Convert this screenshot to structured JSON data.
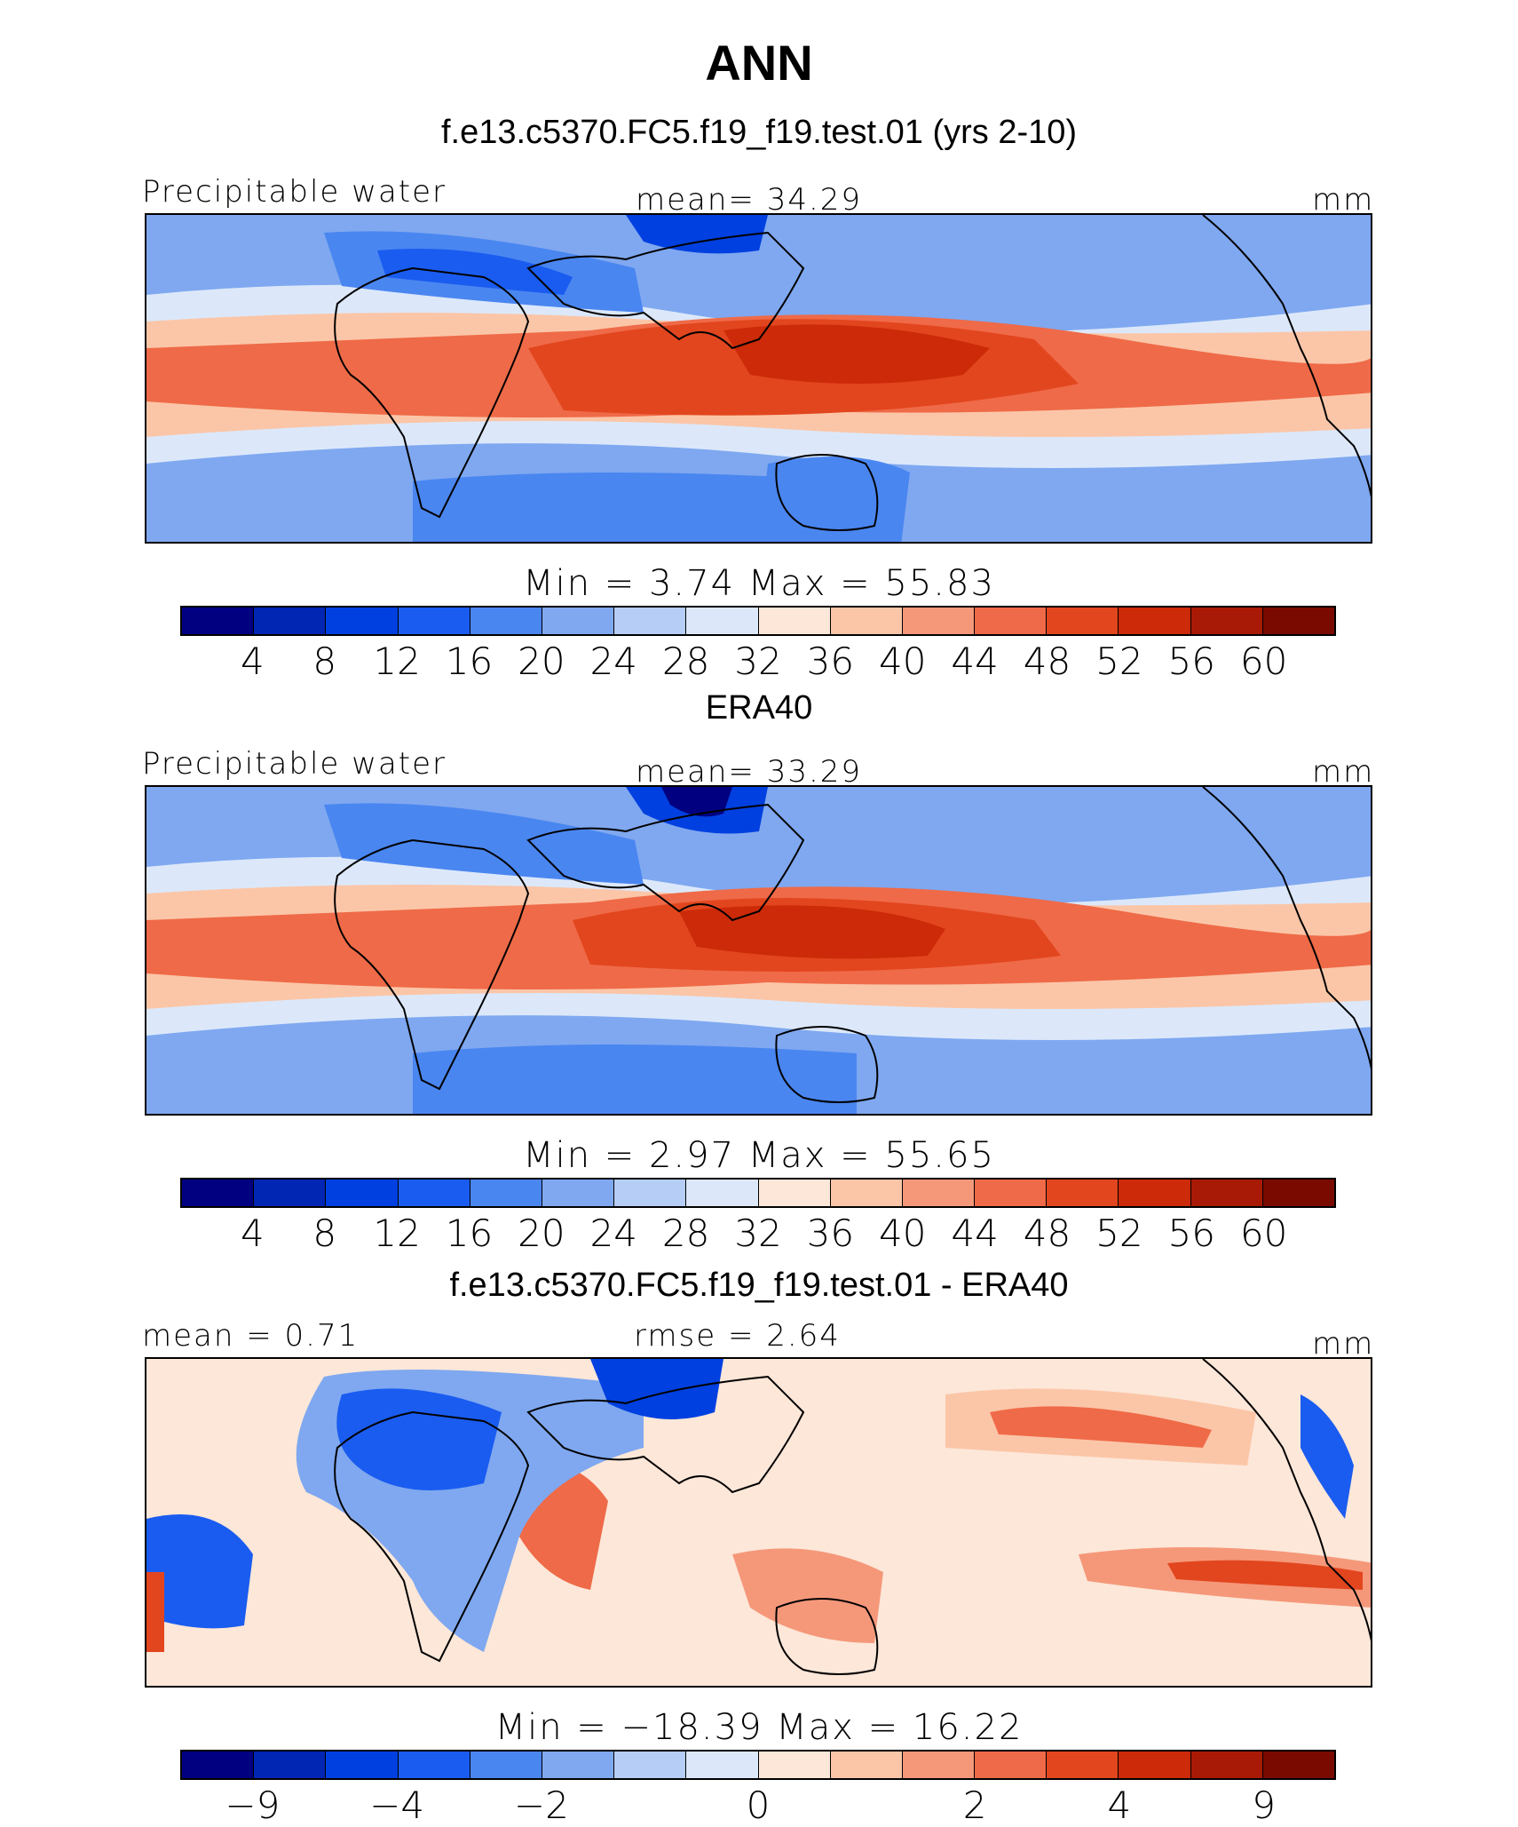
{
  "title": "ANN",
  "colors": [
    "#000080",
    "#0026b3",
    "#0040e0",
    "#1a5cf0",
    "#4a86f0",
    "#7fa8f0",
    "#b6cdf5",
    "#dce8fa",
    "#fde7d8",
    "#fbc6a8",
    "#f5987a",
    "#ef6a48",
    "#e2461e",
    "#cc2a08",
    "#a81a05",
    "#7a0a00"
  ],
  "panels": [
    {
      "subtitle": "f.e13.c5370.FC5.f19_f19.test.01 (yrs 2-10)",
      "left_label": "Precipitable water",
      "center_label": "mean=   34.29",
      "right_label": "mm",
      "minmax": "Min  =     3.74  Max  =    55.83",
      "ticks": [
        "4",
        "8",
        "12",
        "16",
        "20",
        "24",
        "28",
        "32",
        "36",
        "40",
        "44",
        "48",
        "52",
        "56",
        "60"
      ]
    },
    {
      "subtitle": "ERA40",
      "left_label": "Precipitable water",
      "center_label": "mean=   33.29",
      "right_label": "mm",
      "minmax": "Min  =     2.97  Max  =    55.65",
      "ticks": [
        "4",
        "8",
        "12",
        "16",
        "20",
        "24",
        "28",
        "32",
        "36",
        "40",
        "44",
        "48",
        "52",
        "56",
        "60"
      ]
    },
    {
      "subtitle": "f.e13.c5370.FC5.f19_f19.test.01 - ERA40",
      "left_label": "mean =    0.71",
      "center_label": "rmse =    2.64",
      "right_label": "mm",
      "minmax": "Min  = −18.39  Max  =    16.22",
      "ticks": [
        "−9",
        "−4",
        "−2",
        "0",
        "2",
        "4",
        "9"
      ]
    }
  ]
}
